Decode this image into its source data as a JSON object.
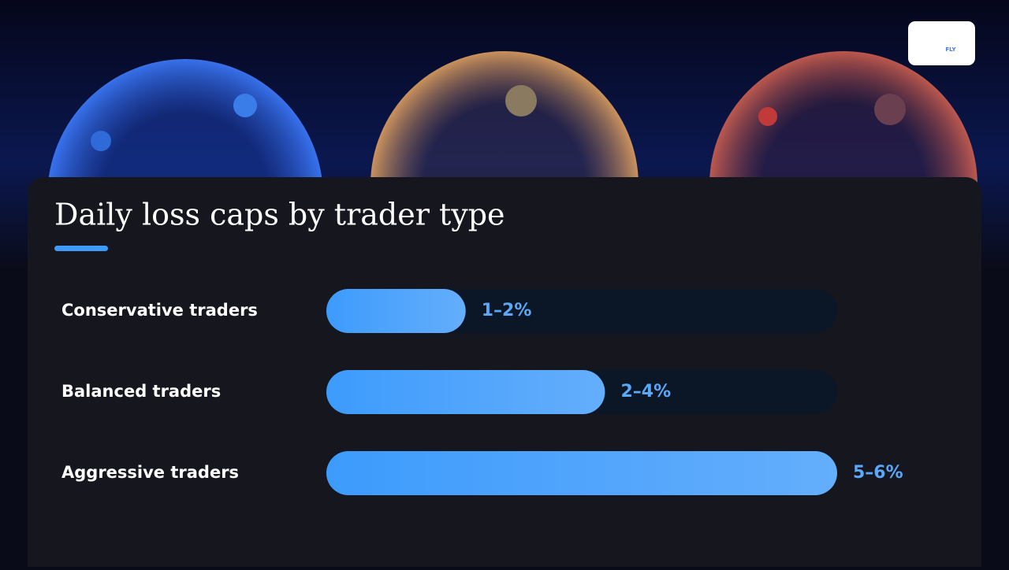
{
  "logo_text": "FLY",
  "chart_data": {
    "type": "hbar",
    "title": "Daily loss caps by trader type",
    "categories": [
      "Conservative traders",
      "Balanced traders",
      "Aggressive traders"
    ],
    "values": [
      1.5,
      3,
      5.5
    ],
    "value_labels": [
      "1–2%",
      "2–4%",
      "5–6%"
    ],
    "xlim": [
      0,
      5.5
    ],
    "color": "#3d9bfc"
  }
}
